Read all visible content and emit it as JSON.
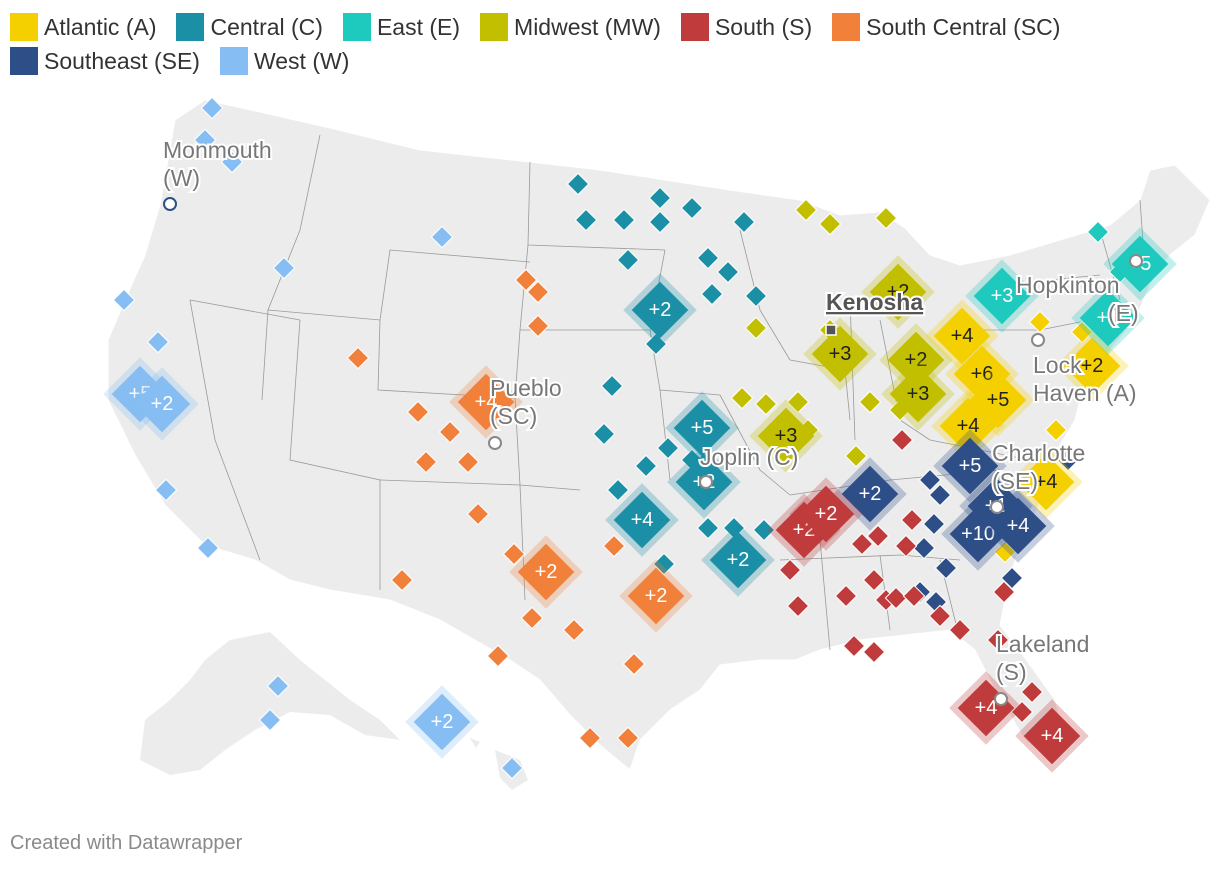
{
  "legend": [
    {
      "code": "A",
      "label": "Atlantic (A)",
      "color": "#f5d000"
    },
    {
      "code": "C",
      "label": "Central (C)",
      "color": "#1a8fa6"
    },
    {
      "code": "E",
      "label": "East (E)",
      "color": "#1ec9bd"
    },
    {
      "code": "MW",
      "label": "Midwest (MW)",
      "color": "#c1bf00"
    },
    {
      "code": "S",
      "label": "South (S)",
      "color": "#c03b3b"
    },
    {
      "code": "SC",
      "label": "South Central (SC)",
      "color": "#f0803a"
    },
    {
      "code": "SE",
      "label": "Southeast (SE)",
      "color": "#2e4e87"
    },
    {
      "code": "W",
      "label": "West (W)",
      "color": "#86bdf2"
    }
  ],
  "cities": [
    {
      "name": "monmouth",
      "line1": "Monmouth",
      "line2": "(W)"
    },
    {
      "name": "pueblo",
      "line1": "Pueblo",
      "line2": "(SC)"
    },
    {
      "name": "joplin",
      "line1": "Joplin (C)",
      "line2": ""
    },
    {
      "name": "kenosha",
      "line1": "Kenosha",
      "line2": ""
    },
    {
      "name": "hopkinton",
      "line1": "Hopkinton",
      "line2": "(E)"
    },
    {
      "name": "lock-haven",
      "line1": "Lock",
      "line2": "Haven (A)"
    },
    {
      "name": "charlotte",
      "line1": "Charlotte",
      "line2": "(SE)"
    },
    {
      "name": "lakeland",
      "line1": "Lakeland",
      "line2": "(S)"
    }
  ],
  "clusters": [
    {
      "region": "W",
      "label": "+5"
    },
    {
      "region": "W",
      "label": "+2"
    },
    {
      "region": "W",
      "label": "+2"
    },
    {
      "region": "SC",
      "label": "+4"
    },
    {
      "region": "SC",
      "label": "+2"
    },
    {
      "region": "SC",
      "label": "+2"
    },
    {
      "region": "C",
      "label": "+2"
    },
    {
      "region": "C",
      "label": "+5"
    },
    {
      "region": "C",
      "label": "+2"
    },
    {
      "region": "C",
      "label": "+4"
    },
    {
      "region": "C",
      "label": "+2"
    },
    {
      "region": "MW",
      "label": "+3"
    },
    {
      "region": "MW",
      "label": "+3"
    },
    {
      "region": "MW",
      "label": "+2"
    },
    {
      "region": "MW",
      "label": "+2"
    },
    {
      "region": "MW",
      "label": "+3"
    },
    {
      "region": "A",
      "label": "+4"
    },
    {
      "region": "A",
      "label": "+6"
    },
    {
      "region": "A",
      "label": "+5"
    },
    {
      "region": "A",
      "label": "+4"
    },
    {
      "region": "A",
      "label": "+4"
    },
    {
      "region": "A",
      "label": "+2"
    },
    {
      "region": "E",
      "label": "+3"
    },
    {
      "region": "E",
      "label": "+5"
    },
    {
      "region": "E",
      "label": "+1"
    },
    {
      "region": "SE",
      "label": "+2"
    },
    {
      "region": "SE",
      "label": "+5"
    },
    {
      "region": "SE",
      "label": "+1"
    },
    {
      "region": "SE",
      "label": "+10"
    },
    {
      "region": "SE",
      "label": "+4"
    },
    {
      "region": "S",
      "label": "+2"
    },
    {
      "region": "S",
      "label": "+2"
    },
    {
      "region": "S",
      "label": "+4"
    },
    {
      "region": "S",
      "label": "+4"
    }
  ],
  "credit": "Created with Datawrapper"
}
